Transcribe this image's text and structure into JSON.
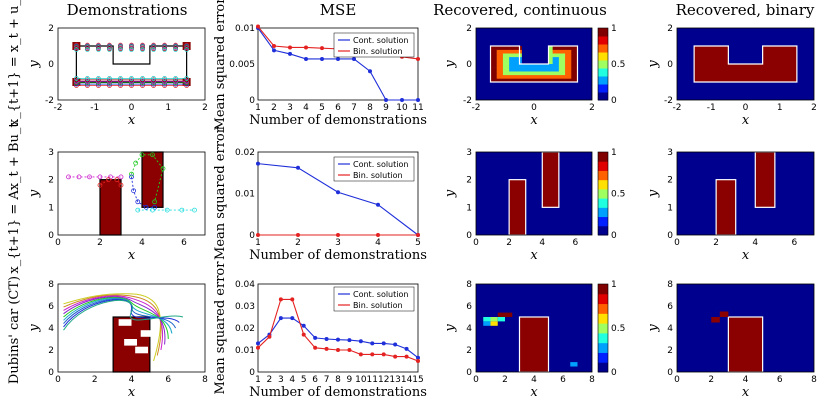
{
  "colors": {
    "cont": "#1f2fd9",
    "bin": "#e52222",
    "obstacle": "#8b0000",
    "free": "#002a96",
    "cmap": [
      "#00008f",
      "#0020ff",
      "#00a0ff",
      "#20ffdf",
      "#9fff60",
      "#ffe000",
      "#ff6000",
      "#e00000",
      "#800000"
    ]
  },
  "titles": {
    "demo": "Demonstrations",
    "mse": "MSE",
    "cont": "Recovered, continuous",
    "bin": "Recovered, binary"
  },
  "rows": [
    {
      "label": "x_{t+1} = x_t + u_t"
    },
    {
      "label": "x_{t+1} = Ax_t + Bu_t"
    },
    {
      "label": "Dubins' car (CT)"
    }
  ],
  "axis_labels": {
    "x": "x",
    "y": "y",
    "mse_x": "Number of demonstrations",
    "mse_y": "Mean squared error"
  },
  "chart_data": [
    {
      "type": "line",
      "row": 0,
      "x": [
        1,
        2,
        3,
        4,
        5,
        6,
        7,
        8,
        9,
        10,
        11
      ],
      "xticks": [
        "1",
        "2",
        "3",
        "4",
        "5",
        "6",
        "7",
        "8",
        "9",
        "10",
        "11"
      ],
      "tick_colors": [
        "#1f2fd9",
        "#e52222",
        "#e52222",
        "#e52222",
        "#e52222",
        "#e52222",
        "#e52222",
        "#e52222",
        "#e52222",
        "#e52222",
        "#00cccc"
      ],
      "series": [
        {
          "name": "Cont. solution",
          "values": [
            0.01,
            0.0069,
            0.0064,
            0.0057,
            0.0057,
            0.0057,
            0.0057,
            0.004,
            0.0,
            0.0,
            0.0
          ]
        },
        {
          "name": "Bin. solution",
          "values": [
            0.0102,
            0.0075,
            0.0073,
            0.0073,
            0.0072,
            0.0071,
            0.007,
            0.0066,
            0.0065,
            0.006,
            0.0057
          ]
        }
      ],
      "ylim": [
        0,
        0.01
      ],
      "yticks": [
        "0",
        "0.005",
        "0.01"
      ],
      "ytick_values": [
        0,
        0.005,
        0.01
      ],
      "xlim": [
        1,
        11
      ]
    },
    {
      "type": "line",
      "row": 1,
      "x": [
        1,
        2,
        3,
        4,
        5
      ],
      "xticks": [
        "1",
        "2",
        "3",
        "4",
        "5"
      ],
      "tick_colors": [
        "#1f2fd9",
        "#e52222",
        "#22aa22",
        "#cc22cc",
        "#22dddd"
      ],
      "series": [
        {
          "name": "Cont. solution",
          "values": [
            0.0172,
            0.0162,
            0.0103,
            0.0073,
            0.0
          ]
        },
        {
          "name": "Bin. solution",
          "values": [
            0.0,
            0.0,
            0.0,
            0.0,
            0.0
          ]
        }
      ],
      "ylim": [
        0,
        0.02
      ],
      "yticks": [
        "0",
        "0.01",
        "0.02"
      ],
      "ytick_values": [
        0,
        0.01,
        0.02
      ],
      "xlim": [
        1,
        5
      ]
    },
    {
      "type": "line",
      "row": 2,
      "x": [
        1,
        2,
        3,
        4,
        5,
        6,
        7,
        8,
        9,
        10,
        11,
        12,
        13,
        14,
        15
      ],
      "xticks": [
        "1",
        "2",
        "3",
        "4",
        "5",
        "6",
        "7",
        "8",
        "9",
        "10",
        "11",
        "12",
        "13",
        "14",
        "15"
      ],
      "tick_colors": [
        "#cccc22",
        "#cc8822",
        "#cc22cc",
        "#8822cc",
        "#22cc22",
        "#22aacc",
        "#2266cc",
        "#8822cc",
        "#22cc22",
        "#22cc22",
        "#cc22cc",
        "#2222cc",
        "#2222cc",
        "#22cc22",
        "#cccc22"
      ],
      "series": [
        {
          "name": "Cont. solution",
          "values": [
            0.013,
            0.017,
            0.0245,
            0.0245,
            0.021,
            0.0155,
            0.015,
            0.0147,
            0.0145,
            0.014,
            0.013,
            0.013,
            0.0125,
            0.0105,
            0.0065
          ]
        },
        {
          "name": "Bin. solution",
          "values": [
            0.011,
            0.016,
            0.033,
            0.033,
            0.017,
            0.011,
            0.0105,
            0.01,
            0.01,
            0.008,
            0.008,
            0.008,
            0.007,
            0.007,
            0.005
          ]
        }
      ],
      "ylim": [
        0,
        0.04
      ],
      "yticks": [
        "0",
        "0.01",
        "0.02",
        "0.03",
        "0.04"
      ],
      "ytick_values": [
        0,
        0.01,
        0.02,
        0.03,
        0.04
      ],
      "xlim": [
        1,
        15
      ]
    }
  ],
  "demo_axes": [
    {
      "xlim": [
        -2,
        2
      ],
      "ylim": [
        -2,
        2
      ],
      "xticks": [
        "-2",
        "-1",
        "0",
        "1",
        "2"
      ],
      "xtick_values": [
        -2,
        -1,
        0,
        1,
        2
      ],
      "yticks": [
        "-2",
        "0",
        "2"
      ],
      "ytick_values": [
        -2,
        0,
        2
      ]
    },
    {
      "xlim": [
        0,
        7
      ],
      "ylim": [
        0,
        3
      ],
      "xticks": [
        "0",
        "2",
        "4",
        "6"
      ],
      "xtick_values": [
        0,
        2,
        4,
        6
      ],
      "yticks": [
        "0",
        "1",
        "2",
        "3"
      ],
      "ytick_values": [
        0,
        1,
        2,
        3
      ]
    },
    {
      "xlim": [
        0,
        8
      ],
      "ylim": [
        0,
        8
      ],
      "xticks": [
        "0",
        "2",
        "4",
        "6",
        "8"
      ],
      "xtick_values": [
        0,
        2,
        4,
        6,
        8
      ],
      "yticks": [
        "0",
        "2",
        "4",
        "6",
        "8"
      ],
      "ytick_values": [
        0,
        2,
        4,
        6,
        8
      ]
    }
  ],
  "recon_axes": [
    {
      "xlim": [
        -2,
        2
      ],
      "ylim": [
        -2,
        2
      ],
      "xticks": [
        "-2",
        "0",
        "2"
      ],
      "xtick_values": [
        -2,
        0,
        2
      ],
      "yticks": [
        "-2",
        "0",
        "2"
      ],
      "ytick_values": [
        -2,
        0,
        2
      ]
    },
    {
      "xlim": [
        0,
        7
      ],
      "ylim": [
        0,
        3
      ],
      "xticks": [
        "0",
        "2",
        "4",
        "6"
      ],
      "xtick_values": [
        0,
        2,
        4,
        6
      ],
      "yticks": [
        "0",
        "1",
        "2",
        "3"
      ],
      "ytick_values": [
        0,
        1,
        2,
        3
      ]
    },
    {
      "xlim": [
        0,
        8
      ],
      "ylim": [
        0,
        8
      ],
      "xticks": [
        "0",
        "2",
        "4",
        "6",
        "8"
      ],
      "xtick_values": [
        0,
        2,
        4,
        6,
        8
      ],
      "yticks": [
        "0",
        "2",
        "4",
        "6",
        "8"
      ],
      "ytick_values": [
        0,
        2,
        4,
        6,
        8
      ]
    }
  ],
  "bin_axes": [
    {
      "xlim": [
        -2,
        2
      ],
      "ylim": [
        -2,
        2
      ],
      "xticks": [
        "-2",
        "-1",
        "0",
        "1",
        "2"
      ],
      "xtick_values": [
        -2,
        -1,
        0,
        1,
        2
      ],
      "yticks": [
        "-2",
        "0",
        "2"
      ],
      "ytick_values": [
        -2,
        0,
        2
      ]
    },
    {
      "xlim": [
        0,
        7
      ],
      "ylim": [
        0,
        3
      ],
      "xticks": [
        "0",
        "2",
        "4",
        "6"
      ],
      "xtick_values": [
        0,
        2,
        4,
        6
      ],
      "yticks": [
        "0",
        "1",
        "2",
        "3"
      ],
      "ytick_values": [
        0,
        1,
        2,
        3
      ]
    },
    {
      "xlim": [
        0,
        8
      ],
      "ylim": [
        0,
        8
      ],
      "xticks": [
        "0",
        "2",
        "4",
        "6",
        "8"
      ],
      "xtick_values": [
        0,
        2,
        4,
        6,
        8
      ],
      "yticks": [
        "0",
        "2",
        "4",
        "6",
        "8"
      ],
      "ytick_values": [
        0,
        2,
        4,
        6,
        8
      ]
    }
  ],
  "colorbar": {
    "ticks": [
      "0",
      "0.5",
      "1"
    ],
    "tick_values": [
      0,
      0.5,
      1
    ]
  },
  "obstacles": [
    {
      "polys": [
        [
          [
            -1.5,
            -1
          ],
          [
            1.5,
            -1
          ],
          [
            1.5,
            1
          ],
          [
            0.5,
            1
          ],
          [
            0.5,
            0
          ],
          [
            -0.5,
            0
          ],
          [
            -0.5,
            1
          ],
          [
            -1.5,
            1
          ]
        ]
      ]
    },
    {
      "rects": [
        [
          2,
          0,
          1,
          2
        ],
        [
          4,
          1,
          1,
          2
        ]
      ]
    },
    {
      "rects": [
        [
          3,
          0,
          2,
          5
        ]
      ]
    }
  ]
}
